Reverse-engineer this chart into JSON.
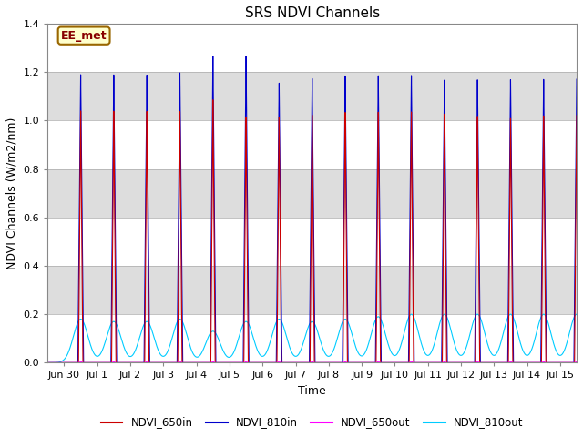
{
  "title": "SRS NDVI Channels",
  "xlabel": "Time",
  "ylabel": "NDVI Channels (W/m2/nm)",
  "ylim": [
    0,
    1.4
  ],
  "yticks": [
    0.0,
    0.2,
    0.4,
    0.6,
    0.8,
    1.0,
    1.2,
    1.4
  ],
  "line_colors": {
    "NDVI_650in": "#cc0000",
    "NDVI_810in": "#0000cc",
    "NDVI_650out": "#ff00ff",
    "NDVI_810out": "#00ccff"
  },
  "annotation_text": "EE_met",
  "annotation_bg": "#ffffcc",
  "annotation_border": "#996600",
  "background_color": "#ffffff",
  "num_days": 16,
  "start_day": -0.5,
  "end_day": 15.5,
  "xtick_labels": [
    "Jun 30",
    "Jul 1",
    "Jul 2",
    "Jul 3",
    "Jul 4",
    "Jul 5",
    "Jul 6",
    "Jul 7",
    "Jul 8",
    "Jul 9",
    "Jul 10",
    "Jul 11",
    "Jul 12",
    "Jul 13",
    "Jul 14",
    "Jul 15"
  ],
  "xtick_positions": [
    0,
    1,
    2,
    3,
    4,
    5,
    6,
    7,
    8,
    9,
    10,
    11,
    12,
    13,
    14,
    15
  ],
  "peaks_810in": [
    1.19,
    1.19,
    1.19,
    1.2,
    1.27,
    1.27,
    1.16,
    1.18,
    1.19,
    1.19,
    1.19,
    1.17,
    1.17,
    1.17,
    1.17,
    1.17
  ],
  "peaks_650in": [
    1.04,
    1.04,
    1.04,
    1.04,
    1.09,
    1.02,
    1.02,
    1.03,
    1.04,
    1.04,
    1.04,
    1.03,
    1.02,
    1.01,
    1.02,
    1.02
  ],
  "peaks_810out": [
    0.18,
    0.17,
    0.17,
    0.18,
    0.13,
    0.17,
    0.18,
    0.17,
    0.18,
    0.19,
    0.2,
    0.2,
    0.2,
    0.2,
    0.2,
    0.2
  ],
  "peaks_650out": [
    0.005,
    0.005,
    0.005,
    0.005,
    0.005,
    0.005,
    0.005,
    0.005,
    0.005,
    0.005,
    0.005,
    0.005,
    0.005,
    0.005,
    0.005,
    0.005
  ],
  "band_colors": [
    "#ffffff",
    "#dddddd",
    "#ffffff",
    "#dddddd",
    "#ffffff",
    "#dddddd",
    "#ffffff"
  ],
  "figsize": [
    6.4,
    4.8
  ],
  "dpi": 100
}
